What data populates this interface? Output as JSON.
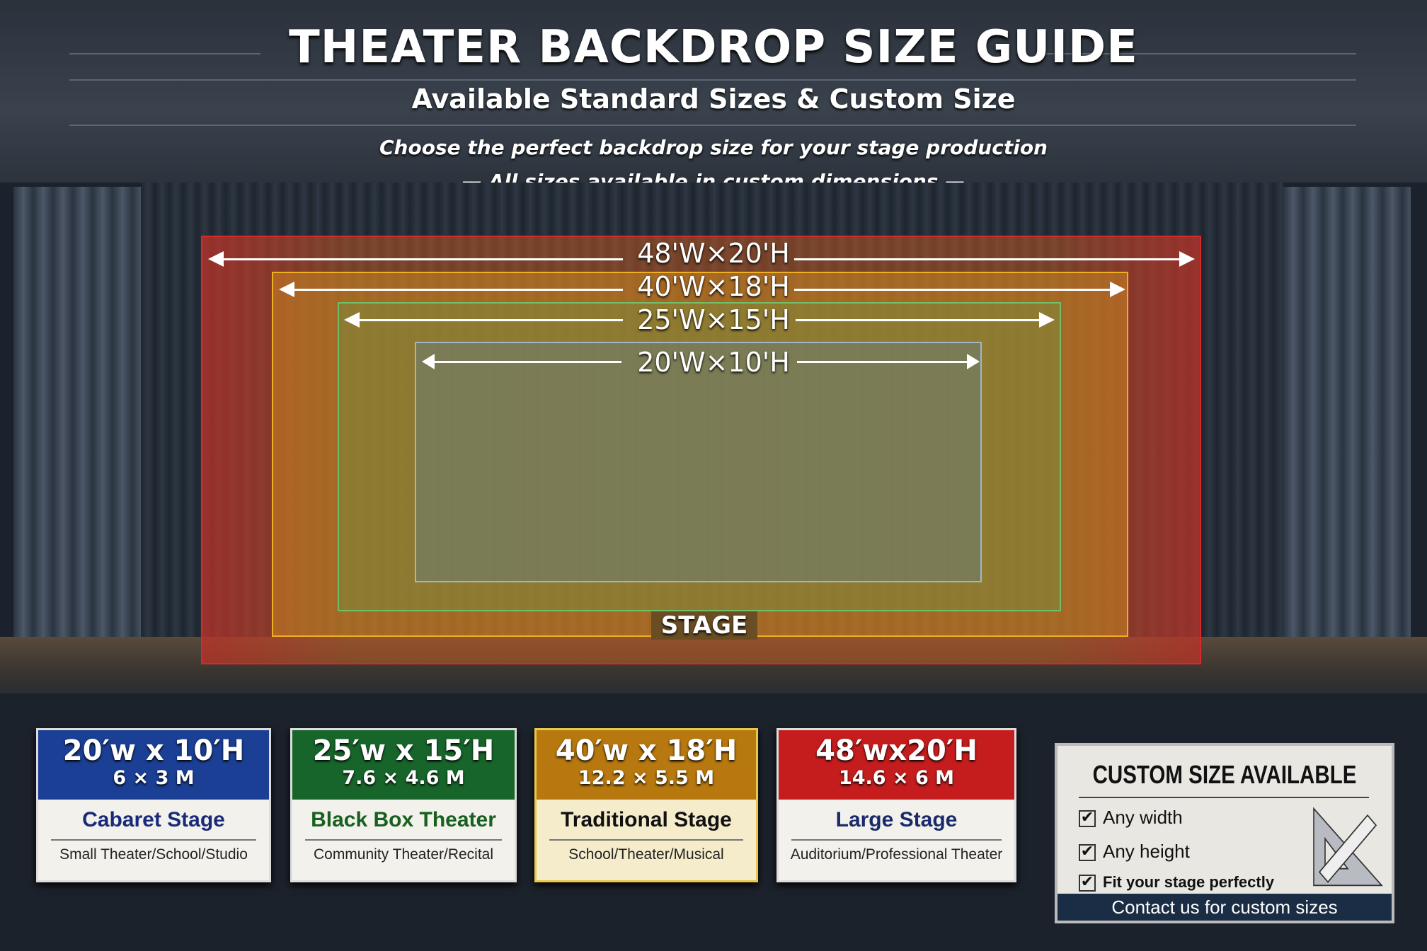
{
  "header": {
    "title": "THEATER BACKDROP SIZE GUIDE",
    "subtitle": "Available Standard Sizes & Custom Size",
    "tagline": "Choose the perfect backdrop size for your stage production",
    "note": "All sizes available in custom dimensions"
  },
  "diagram": {
    "stage_label": "STAGE",
    "sizes": [
      {
        "label": "48'W×20'H",
        "color": "#d42a2a"
      },
      {
        "label": "40'W×18'H",
        "color": "#f0b020"
      },
      {
        "label": "25'W×15'H",
        "color": "#6fbf6a"
      },
      {
        "label": "20'W×10'H",
        "color": "#9fb8c8"
      }
    ]
  },
  "cards": [
    {
      "dim": "20′w x 10′H",
      "metric": "6 × 3 M",
      "name": "Cabaret Stage",
      "uses": "Small Theater/School/Studio",
      "color": "#1a3f94",
      "name_color": "#1a2a7a"
    },
    {
      "dim": "25′w x 15′H",
      "metric": "7.6 × 4.6 M",
      "name": "Black Box Theater",
      "uses": "Community Theater/Recital",
      "color": "#17652a",
      "name_color": "#17601f"
    },
    {
      "dim": "40′w x 18′H",
      "metric": "12.2 × 5.5 M",
      "name": "Traditional Stage",
      "uses": "School/Theater/Musical",
      "color": "#b7780f",
      "name_color": "#111111"
    },
    {
      "dim": "48′wx20′H",
      "metric": "14.6 × 6 M",
      "name": "Large Stage",
      "uses": "Auditorium/Professional Theater",
      "color": "#c51d1d",
      "name_color": "#1a2a6a"
    }
  ],
  "custom": {
    "title": "CUSTOM SIZE AVAILABLE",
    "features": [
      "Any width",
      "Any height",
      "Fit your stage perfectly"
    ],
    "contact": "Contact us for custom sizes",
    "icon": "ruler-triangle-icon"
  }
}
